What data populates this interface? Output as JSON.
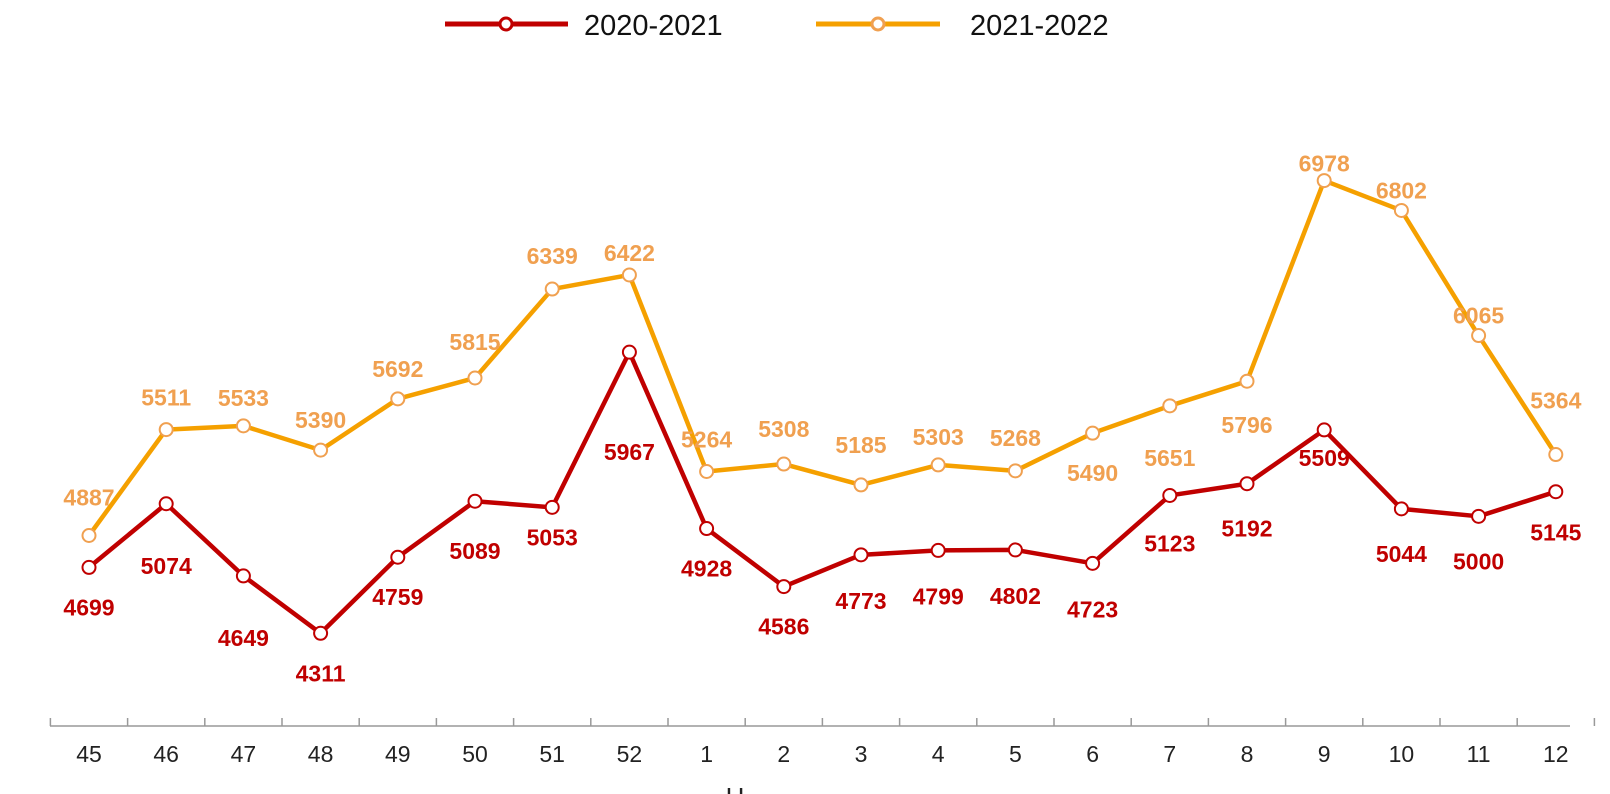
{
  "chart_data": {
    "type": "line",
    "categories": [
      "45",
      "46",
      "47",
      "48",
      "49",
      "50",
      "51",
      "52",
      "1",
      "2",
      "3",
      "4",
      "5",
      "6",
      "7",
      "8",
      "9",
      "10",
      "11",
      "12"
    ],
    "series": [
      {
        "name": "2020-2021",
        "color": "#c00000",
        "label_color": "#c00000",
        "values": [
          4699,
          5074,
          4649,
          4311,
          4759,
          5089,
          5053,
          5967,
          4928,
          4586,
          4773,
          4799,
          4802,
          4723,
          5123,
          5192,
          5509,
          5044,
          5000,
          5145
        ]
      },
      {
        "name": "2021-2022",
        "color": "#f5a000",
        "label_color": "#f0a050",
        "values": [
          4887,
          5511,
          5533,
          5390,
          5692,
          5815,
          6339,
          6422,
          5264,
          5308,
          5185,
          5303,
          5268,
          5490,
          5651,
          5796,
          6978,
          6802,
          6065,
          5364
        ]
      }
    ],
    "xlabel": "Н",
    "ylim": [
      3800,
      7600
    ],
    "grid": false,
    "legend_position": "top-center"
  }
}
